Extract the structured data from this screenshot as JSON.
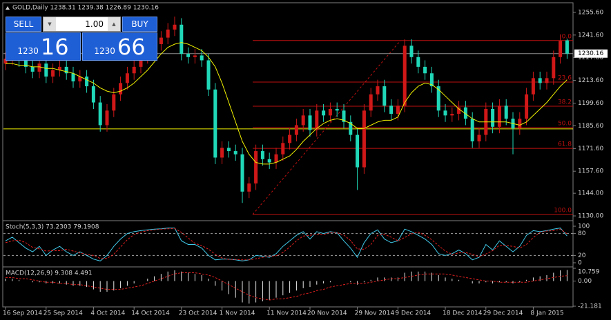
{
  "chart_data": [
    {
      "type": "candlestick",
      "title": "GOLD,Daily 1238.31 1239.38 1226.89 1230.16",
      "categories": [
        "16 Sep 2014",
        null,
        null,
        null,
        null,
        null,
        "25 Sep 2014",
        null,
        null,
        null,
        null,
        null,
        null,
        "4 Oct 2014",
        null,
        null,
        null,
        null,
        null,
        "14 Oct 2014",
        null,
        null,
        null,
        null,
        null,
        null,
        "23 Oct 2014",
        null,
        null,
        null,
        null,
        null,
        "1 Nov 2014",
        null,
        null,
        null,
        null,
        null,
        null,
        "11 Nov 2014",
        null,
        null,
        null,
        null,
        null,
        "20 Nov 2014",
        null,
        null,
        null,
        null,
        null,
        null,
        "29 Nov 2014",
        null,
        null,
        null,
        null,
        null,
        "9 Dec 2014",
        null,
        null,
        null,
        null,
        null,
        null,
        "18 Dec 2014",
        null,
        null,
        null,
        null,
        null,
        "29 Dec 2014",
        null,
        null,
        null,
        null,
        null,
        null,
        "8 Jan 2015",
        null,
        null,
        null,
        null,
        null
      ],
      "open": [
        1224,
        1227,
        1232,
        1226,
        1222,
        1219,
        1224,
        1216,
        1220,
        1222,
        1218,
        1213,
        1216,
        1210,
        1200,
        1186,
        1195,
        1205,
        1212,
        1218,
        1222,
        1228,
        1230,
        1236,
        1240,
        1245,
        1248,
        1230,
        1228,
        1229,
        1226,
        1208,
        1166,
        1172,
        1170,
        1168,
        1145,
        1150,
        1170,
        1165,
        1163,
        1168,
        1175,
        1180,
        1186,
        1192,
        1183,
        1195,
        1192,
        1196,
        1195,
        1188,
        1180,
        1160,
        1195,
        1205,
        1210,
        1198,
        1193,
        1198,
        1235,
        1228,
        1222,
        1218,
        1210,
        1195,
        1192,
        1193,
        1197,
        1190,
        1176,
        1180,
        1196,
        1185,
        1198,
        1190,
        1184,
        1190,
        1205,
        1215,
        1212,
        1215,
        1228,
        1238.31
      ],
      "high": [
        1231,
        1236,
        1236,
        1230,
        1226,
        1228,
        1228,
        1224,
        1226,
        1226,
        1222,
        1220,
        1220,
        1214,
        1204,
        1199,
        1209,
        1216,
        1222,
        1226,
        1232,
        1234,
        1240,
        1244,
        1249,
        1253,
        1252,
        1234,
        1233,
        1233,
        1230,
        1212,
        1176,
        1176,
        1174,
        1172,
        1154,
        1174,
        1174,
        1169,
        1172,
        1179,
        1184,
        1190,
        1196,
        1196,
        1199,
        1199,
        1200,
        1200,
        1199,
        1192,
        1184,
        1199,
        1209,
        1214,
        1214,
        1202,
        1202,
        1239,
        1239,
        1232,
        1226,
        1222,
        1214,
        1199,
        1197,
        1201,
        1201,
        1194,
        1184,
        1200,
        1200,
        1202,
        1202,
        1194,
        1194,
        1209,
        1219,
        1219,
        1219,
        1232,
        1242,
        1239.38
      ],
      "low": [
        1220,
        1223,
        1222,
        1218,
        1215,
        1215,
        1212,
        1212,
        1216,
        1214,
        1209,
        1209,
        1206,
        1196,
        1182,
        1182,
        1191,
        1201,
        1208,
        1214,
        1218,
        1224,
        1226,
        1232,
        1236,
        1241,
        1226,
        1224,
        1224,
        1222,
        1204,
        1162,
        1162,
        1166,
        1164,
        1138,
        1141,
        1146,
        1161,
        1159,
        1159,
        1164,
        1171,
        1176,
        1182,
        1179,
        1179,
        1188,
        1188,
        1191,
        1184,
        1176,
        1146,
        1156,
        1191,
        1201,
        1194,
        1189,
        1189,
        1194,
        1224,
        1218,
        1214,
        1206,
        1191,
        1188,
        1188,
        1189,
        1186,
        1172,
        1172,
        1176,
        1181,
        1181,
        1186,
        1168,
        1180,
        1186,
        1201,
        1208,
        1208,
        1211,
        1224,
        1226.89
      ],
      "close": [
        1227,
        1232,
        1226,
        1222,
        1219,
        1224,
        1216,
        1220,
        1222,
        1218,
        1213,
        1216,
        1210,
        1200,
        1186,
        1195,
        1205,
        1212,
        1218,
        1222,
        1228,
        1230,
        1236,
        1240,
        1245,
        1248,
        1230,
        1228,
        1229,
        1226,
        1208,
        1166,
        1172,
        1170,
        1168,
        1145,
        1150,
        1170,
        1165,
        1163,
        1168,
        1175,
        1180,
        1186,
        1192,
        1183,
        1195,
        1192,
        1196,
        1195,
        1188,
        1180,
        1160,
        1195,
        1205,
        1210,
        1198,
        1193,
        1198,
        1235,
        1228,
        1222,
        1218,
        1210,
        1195,
        1192,
        1193,
        1197,
        1190,
        1176,
        1180,
        1196,
        1185,
        1198,
        1190,
        1184,
        1190,
        1205,
        1215,
        1212,
        1215,
        1228,
        1238,
        1230.16
      ],
      "up_color": "#d01818",
      "down_color": "#20d8b8",
      "moving_average": {
        "color": "#f0f000",
        "values": [
          1224,
          1224,
          1223,
          1223,
          1222,
          1222,
          1221,
          1221,
          1220,
          1219,
          1218,
          1216,
          1214,
          1212,
          1209,
          1207,
          1206,
          1207,
          1209,
          1212,
          1216,
          1220,
          1225,
          1230,
          1234,
          1236,
          1237,
          1236,
          1234,
          1232,
          1228,
          1222,
          1212,
          1200,
          1188,
          1176,
          1168,
          1163,
          1162,
          1162,
          1163,
          1165,
          1167,
          1171,
          1176,
          1180,
          1184,
          1187,
          1189,
          1190,
          1189,
          1187,
          1184,
          1184,
          1186,
          1188,
          1189,
          1189,
          1191,
          1200,
          1206,
          1210,
          1212,
          1211,
          1208,
          1204,
          1200,
          1196,
          1193,
          1190,
          1188,
          1188,
          1188,
          1188,
          1188,
          1187,
          1186,
          1188,
          1192,
          1196,
          1200,
          1205,
          1210,
          1214
        ]
      },
      "ylim": [
        1127.9,
        1261.1
      ],
      "yticks": [
        {
          "value": 1255.6,
          "label": "1255.60"
        },
        {
          "value": 1241.6,
          "label": "1241.60"
        },
        {
          "value": 1227.8,
          "label": "1227.80"
        },
        {
          "value": 1213.6,
          "label": "1213.60"
        },
        {
          "value": 1199.6,
          "label": "1199.60"
        },
        {
          "value": 1185.6,
          "label": "1185.60"
        },
        {
          "value": 1171.6,
          "label": "1171.60"
        },
        {
          "value": 1157.6,
          "label": "1157.60"
        },
        {
          "value": 1144,
          "label": "1144.00"
        },
        {
          "value": 1130,
          "label": "1130.00"
        }
      ],
      "price_line": {
        "value": 1230.16,
        "label": "1230.16",
        "color": "#909090"
      },
      "horizontal_line": {
        "value": 1183.7,
        "color": "#f0f000"
      },
      "fibonacci": {
        "color": "#c01010",
        "levels": [
          {
            "value": 1238.2,
            "label": "0.0"
          },
          {
            "value": 1212.6,
            "label": "23.6"
          },
          {
            "value": 1197.7,
            "label": "38.2"
          },
          {
            "value": 1184.5,
            "label": "50.0"
          },
          {
            "value": 1171.7,
            "label": "61.8"
          },
          {
            "value": 1130.9,
            "label": "100.0"
          }
        ]
      }
    },
    {
      "type": "stochastic",
      "title": "Stoch(5,3,3) 73.2303 79.1908",
      "series": [
        {
          "color": "#40c8e8",
          "dashed": false,
          "values": [
            60,
            70,
            55,
            40,
            30,
            45,
            20,
            35,
            45,
            30,
            20,
            30,
            20,
            10,
            5,
            20,
            45,
            65,
            80,
            85,
            88,
            90,
            92,
            93,
            95,
            95,
            60,
            50,
            50,
            40,
            20,
            8,
            10,
            10,
            8,
            5,
            8,
            20,
            18,
            15,
            25,
            45,
            60,
            75,
            85,
            65,
            85,
            80,
            85,
            82,
            60,
            40,
            15,
            55,
            80,
            90,
            65,
            55,
            60,
            92,
            85,
            75,
            65,
            50,
            25,
            20,
            25,
            35,
            25,
            8,
            15,
            50,
            35,
            60,
            45,
            30,
            45,
            75,
            88,
            85,
            88,
            92,
            95,
            73.2303
          ]
        },
        {
          "color": "#e02020",
          "dashed": true,
          "values": [
            55,
            60,
            62,
            55,
            42,
            38,
            32,
            33,
            33,
            37,
            32,
            27,
            23,
            20,
            12,
            12,
            23,
            43,
            63,
            77,
            84,
            88,
            90,
            92,
            93,
            94,
            83,
            68,
            53,
            47,
            37,
            23,
            13,
            9,
            9,
            8,
            8,
            11,
            15,
            18,
            19,
            28,
            43,
            60,
            73,
            75,
            78,
            77,
            83,
            82,
            76,
            61,
            38,
            37,
            50,
            75,
            78,
            70,
            60,
            69,
            79,
            84,
            75,
            63,
            47,
            32,
            23,
            27,
            28,
            23,
            16,
            24,
            33,
            48,
            47,
            45,
            40,
            50,
            69,
            83,
            87,
            88,
            92,
            79.1908
          ]
        }
      ],
      "ylim": [
        -9.4,
        111.3
      ],
      "yticks": [
        100,
        80,
        20,
        0
      ],
      "levels": [
        80,
        20
      ]
    },
    {
      "type": "macd",
      "title": "MACD(12,26,9) 9.308 4.491",
      "histogram": {
        "color": "#e8e8e8",
        "values": [
          2,
          2,
          1,
          0,
          -1,
          -1,
          -2,
          -2,
          -2,
          -3,
          -4,
          -4,
          -5,
          -7,
          -9,
          -9,
          -8,
          -6,
          -4,
          -2,
          0,
          2,
          4,
          6,
          8,
          9,
          8,
          7,
          6,
          5,
          2,
          -4,
          -8,
          -11,
          -14,
          -18,
          -19,
          -18,
          -17,
          -16,
          -14,
          -12,
          -10,
          -8,
          -6,
          -5,
          -3,
          -2,
          -1,
          0,
          0,
          -1,
          -3,
          -1,
          1,
          3,
          3,
          3,
          3,
          7,
          8,
          8,
          8,
          7,
          5,
          3,
          2,
          1,
          0,
          -2,
          -2,
          -1,
          -2,
          -1,
          -1,
          -2,
          -1,
          1,
          3,
          4,
          5,
          7,
          9,
          9.308
        ]
      },
      "signal": {
        "color": "#e02020",
        "values": [
          3,
          3,
          2,
          2,
          1,
          0,
          -1,
          -1,
          -2,
          -2,
          -3,
          -3,
          -4,
          -5,
          -6,
          -7,
          -7,
          -7,
          -6,
          -5,
          -4,
          -2,
          0,
          2,
          4,
          6,
          7,
          7,
          7,
          6,
          5,
          3,
          0,
          -3,
          -6,
          -9,
          -12,
          -14,
          -15,
          -16,
          -15,
          -15,
          -14,
          -13,
          -11,
          -10,
          -8,
          -7,
          -5,
          -4,
          -3,
          -2,
          -2,
          -2,
          -1,
          0,
          1,
          2,
          2,
          3,
          4,
          5,
          6,
          6,
          6,
          6,
          5,
          4,
          3,
          2,
          1,
          0,
          0,
          -1,
          -1,
          -1,
          -1,
          -1,
          0,
          1,
          2,
          3,
          4,
          4.491
        ]
      },
      "ylim": [
        -21.181,
        10.759
      ],
      "yticks": [
        {
          "value": 10.759,
          "label": "10.759"
        },
        {
          "value": 0,
          "label": "0.00"
        },
        {
          "value": -21.181,
          "label": "-21.181"
        }
      ]
    }
  ],
  "trade_panel": {
    "sell": "SELL",
    "lot": "1.00",
    "buy": "BUY",
    "bid_handle": "1230",
    "bid_pips": "16",
    "ask_handle": "1230",
    "ask_pips": "66"
  }
}
